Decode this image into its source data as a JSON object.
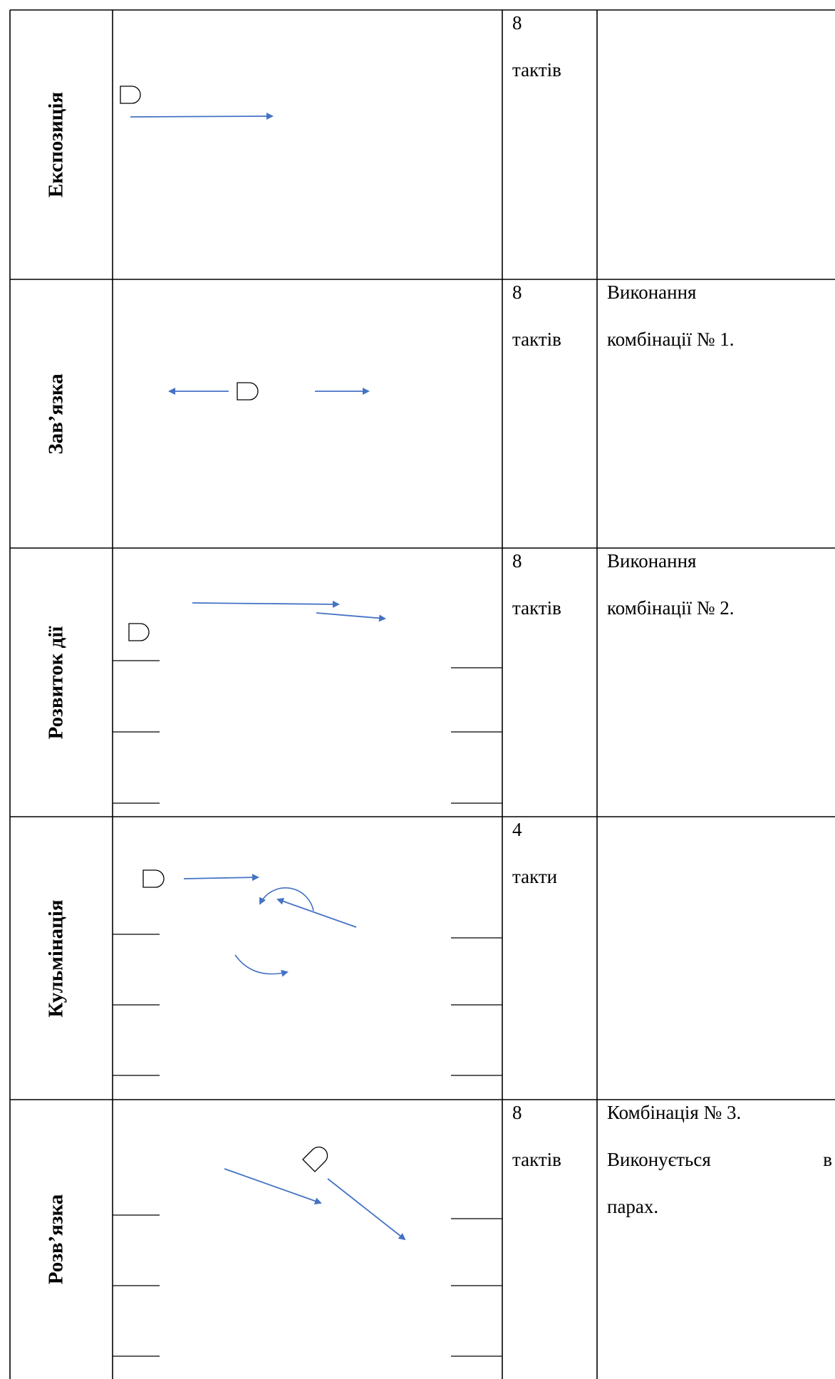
{
  "rows": [
    {
      "label": "Експозиція",
      "bars_count": "8",
      "bars_word": "тактів",
      "description": []
    },
    {
      "label": "Зав’язка",
      "bars_count": "8",
      "bars_word": "тактів",
      "description": [
        "Виконання",
        "комбінації № 1."
      ]
    },
    {
      "label": "Розвиток дії",
      "bars_count": "8",
      "bars_word": "тактів",
      "description": [
        "Виконання",
        "комбінації № 2."
      ]
    },
    {
      "label": "Кульмінація",
      "bars_count": "4",
      "bars_word": "такти",
      "description": []
    },
    {
      "label": "Розв’язка",
      "bars_count": "8",
      "bars_word": "тактів",
      "description": [
        "Комбінація № 3."
      ],
      "description_split": {
        "left": "Виконується",
        "right": "в"
      },
      "description_tail": "парах."
    }
  ],
  "colors": {
    "arrow": "#4472C4",
    "grid": "#000000"
  },
  "icons": {
    "dancer": "dancer-marker-icon",
    "arrow": "movement-arrow-icon"
  }
}
